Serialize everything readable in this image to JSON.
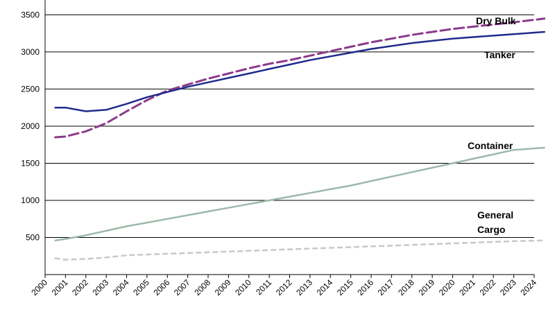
{
  "chart_data": {
    "type": "line",
    "title": "",
    "xlabel": "",
    "ylabel": "",
    "x": [
      2000,
      2001,
      2002,
      2003,
      2004,
      2005,
      2006,
      2007,
      2008,
      2009,
      2010,
      2011,
      2012,
      2013,
      2014,
      2015,
      2016,
      2017,
      2018,
      2019,
      2020,
      2021,
      2022,
      2023,
      2024
    ],
    "x_tick_labels": [
      "2000",
      "2001",
      "2002",
      "2003",
      "2004",
      "2005",
      "2006",
      "2007",
      "2008",
      "2009",
      "2010",
      "2011",
      "2012",
      "2013",
      "2014",
      "2015",
      "2016",
      "2017",
      "2018",
      "2019",
      "2020",
      "2021",
      "2022",
      "2023",
      "2024"
    ],
    "ylim": [
      0,
      3700
    ],
    "y_ticks": [
      500,
      1000,
      1500,
      2000,
      2500,
      3000,
      3500
    ],
    "grid": "horizontal",
    "series": [
      {
        "name": "Dry Bulk",
        "style": "dashed",
        "color": "#8B3A8B",
        "x": [
          2000.5,
          2001,
          2002,
          2003,
          2004,
          2005,
          2006,
          2007,
          2008,
          2009,
          2010,
          2011,
          2012,
          2013,
          2014,
          2015,
          2016,
          2017,
          2018,
          2019,
          2020,
          2021,
          2022,
          2023,
          2024.5
        ],
        "values": [
          1850,
          1860,
          1930,
          2040,
          2200,
          2350,
          2480,
          2560,
          2640,
          2710,
          2780,
          2840,
          2890,
          2950,
          3010,
          3070,
          3130,
          3180,
          3230,
          3270,
          3310,
          3340,
          3370,
          3400,
          3450
        ]
      },
      {
        "name": "Tanker",
        "style": "solid",
        "color": "#1F2A8C",
        "x": [
          2000.5,
          2001,
          2002,
          2003,
          2004,
          2005,
          2006,
          2007,
          2008,
          2009,
          2010,
          2011,
          2012,
          2013,
          2014,
          2015,
          2016,
          2017,
          2018,
          2019,
          2020,
          2021,
          2022,
          2023,
          2024.5
        ],
        "values": [
          2250,
          2250,
          2200,
          2220,
          2300,
          2390,
          2460,
          2530,
          2590,
          2650,
          2710,
          2770,
          2830,
          2890,
          2940,
          2990,
          3040,
          3080,
          3120,
          3150,
          3180,
          3200,
          3220,
          3240,
          3270
        ]
      },
      {
        "name": "Container",
        "style": "solid",
        "color": "#9DB8A8",
        "x": [
          2000.5,
          2001,
          2002,
          2003,
          2004,
          2005,
          2006,
          2007,
          2008,
          2009,
          2010,
          2011,
          2012,
          2013,
          2014,
          2015,
          2016,
          2017,
          2018,
          2019,
          2020,
          2021,
          2022,
          2023,
          2024.5
        ],
        "values": [
          460,
          480,
          530,
          590,
          650,
          700,
          750,
          800,
          850,
          900,
          950,
          1000,
          1050,
          1100,
          1150,
          1200,
          1260,
          1320,
          1380,
          1440,
          1500,
          1560,
          1620,
          1680,
          1710
        ]
      },
      {
        "name": "General Cargo",
        "style": "dotted",
        "color": "#C8C8C8",
        "x": [
          2000.5,
          2001,
          2002,
          2003,
          2004,
          2005,
          2006,
          2007,
          2008,
          2009,
          2010,
          2011,
          2012,
          2013,
          2014,
          2015,
          2016,
          2017,
          2018,
          2019,
          2020,
          2021,
          2022,
          2023,
          2024.5
        ],
        "values": [
          220,
          200,
          210,
          230,
          260,
          270,
          280,
          290,
          300,
          310,
          320,
          330,
          340,
          350,
          360,
          370,
          380,
          390,
          400,
          410,
          420,
          430,
          440,
          450,
          460
        ]
      }
    ],
    "series_labels": {
      "dry_bulk": "Dry Bulk",
      "tanker": "Tanker",
      "container": "Container",
      "general_cargo_line1": "General",
      "general_cargo_line2": "Cargo"
    }
  }
}
